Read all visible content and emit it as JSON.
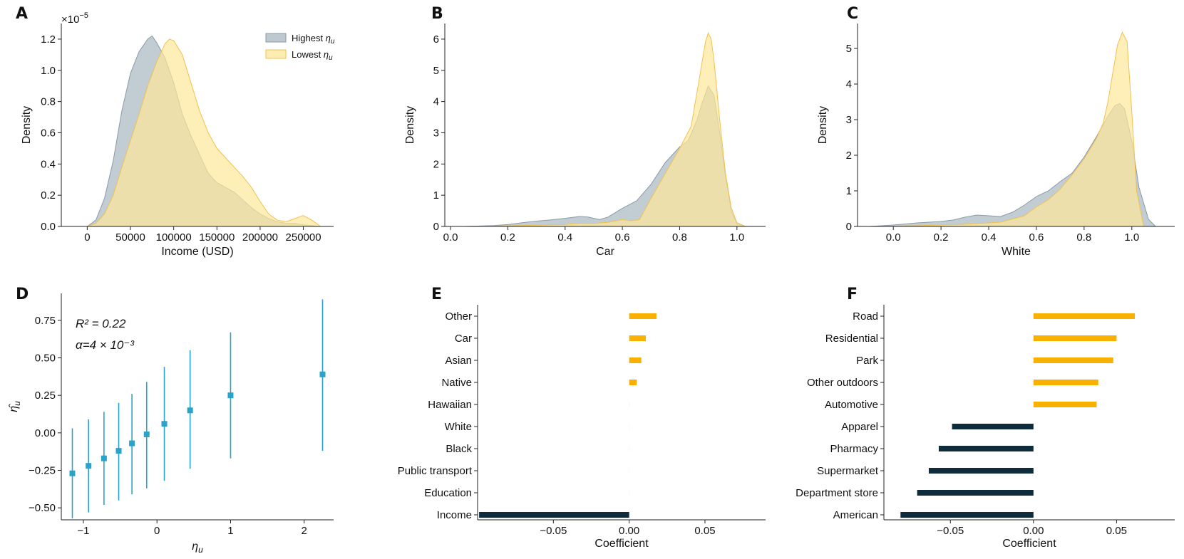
{
  "colors": {
    "highest": "#9aaab5",
    "highest_stroke": "#8a9aa6",
    "lowest": "#fde79a",
    "lowest_stroke": "#f2c14e",
    "positive_bar": "#f9b000",
    "negative_bar": "#0e2c3c",
    "errorbar": "#2aa3c8"
  },
  "chart_data": [
    {
      "panel": "A",
      "type": "area",
      "title": "",
      "xlabel": "Income (USD)",
      "ylabel": "Density",
      "scale_label": "×10",
      "scale_exp": "−5",
      "xlim": [
        -30000,
        285000
      ],
      "ylim": [
        0,
        1.3
      ],
      "xticks": [
        0,
        50000,
        100000,
        150000,
        200000,
        250000
      ],
      "xtick_labels": [
        "0",
        "50000",
        "100000",
        "150000",
        "200000",
        "250000"
      ],
      "yticks": [
        0,
        0.2,
        0.4,
        0.6,
        0.8,
        1.0,
        1.2
      ],
      "ytick_labels": [
        "0.0",
        "0.2",
        "0.4",
        "0.6",
        "0.8",
        "1.0",
        "1.2"
      ],
      "legend": {
        "position": "top-right",
        "entries": [
          {
            "base": "Highest ",
            "sym": "η",
            "sub": "u"
          },
          {
            "base": "Lowest ",
            "sym": "η",
            "sub": "u"
          }
        ]
      },
      "series": [
        {
          "name": "Highest η_u",
          "x": [
            0,
            10000,
            20000,
            30000,
            40000,
            50000,
            60000,
            70000,
            75000,
            80000,
            90000,
            100000,
            110000,
            120000,
            130000,
            140000,
            150000,
            160000,
            170000,
            180000,
            190000,
            200000,
            210000,
            220000,
            230000,
            240000,
            250000,
            260000,
            270000
          ],
          "y": [
            0.0,
            0.04,
            0.18,
            0.42,
            0.74,
            0.98,
            1.12,
            1.2,
            1.22,
            1.18,
            1.08,
            0.92,
            0.72,
            0.58,
            0.46,
            0.34,
            0.28,
            0.25,
            0.22,
            0.17,
            0.12,
            0.08,
            0.05,
            0.03,
            0.02,
            0.02,
            0.01,
            0.005,
            0.0
          ]
        },
        {
          "name": "Lowest η_u",
          "x": [
            0,
            10000,
            20000,
            30000,
            40000,
            50000,
            60000,
            70000,
            80000,
            90000,
            95000,
            100000,
            110000,
            120000,
            130000,
            140000,
            150000,
            160000,
            170000,
            180000,
            190000,
            200000,
            210000,
            220000,
            230000,
            240000,
            250000,
            260000,
            270000
          ],
          "y": [
            0.0,
            0.02,
            0.08,
            0.2,
            0.38,
            0.55,
            0.72,
            0.9,
            1.05,
            1.17,
            1.2,
            1.19,
            1.1,
            0.92,
            0.74,
            0.6,
            0.5,
            0.44,
            0.38,
            0.32,
            0.25,
            0.16,
            0.08,
            0.04,
            0.03,
            0.05,
            0.07,
            0.04,
            0.0
          ]
        }
      ]
    },
    {
      "panel": "B",
      "type": "area",
      "xlabel": "Car",
      "ylabel": "Density",
      "xlim": [
        -0.02,
        1.1
      ],
      "ylim": [
        0,
        6.5
      ],
      "xticks": [
        0.0,
        0.2,
        0.4,
        0.6,
        0.8,
        1.0
      ],
      "xtick_labels": [
        "0.0",
        "0.2",
        "0.4",
        "0.6",
        "0.8",
        "1.0"
      ],
      "yticks": [
        0,
        1,
        2,
        3,
        4,
        5,
        6
      ],
      "ytick_labels": [
        "0",
        "1",
        "2",
        "3",
        "4",
        "5",
        "6"
      ],
      "series": [
        {
          "name": "Highest η_u",
          "x": [
            0.05,
            0.15,
            0.2,
            0.25,
            0.3,
            0.35,
            0.4,
            0.45,
            0.48,
            0.52,
            0.55,
            0.6,
            0.65,
            0.7,
            0.75,
            0.8,
            0.83,
            0.86,
            0.88,
            0.9,
            0.92,
            0.94,
            0.96,
            0.98,
            1.0,
            1.03
          ],
          "y": [
            0.0,
            0.03,
            0.06,
            0.12,
            0.17,
            0.21,
            0.26,
            0.32,
            0.3,
            0.22,
            0.3,
            0.58,
            0.82,
            1.35,
            2.05,
            2.55,
            2.75,
            3.4,
            4.0,
            4.5,
            4.2,
            3.0,
            1.6,
            0.5,
            0.08,
            0.0
          ]
        },
        {
          "name": "Lowest η_u",
          "x": [
            0.05,
            0.2,
            0.3,
            0.4,
            0.45,
            0.5,
            0.55,
            0.6,
            0.63,
            0.66,
            0.7,
            0.75,
            0.8,
            0.84,
            0.87,
            0.89,
            0.9,
            0.91,
            0.92,
            0.94,
            0.96,
            0.98,
            1.0,
            1.03
          ],
          "y": [
            0.0,
            0.02,
            0.04,
            0.06,
            0.1,
            0.1,
            0.13,
            0.22,
            0.18,
            0.22,
            0.9,
            1.7,
            2.5,
            3.2,
            4.8,
            5.9,
            6.2,
            6.0,
            5.3,
            3.4,
            1.7,
            0.6,
            0.12,
            0.0
          ]
        }
      ]
    },
    {
      "panel": "C",
      "type": "area",
      "xlabel": "White",
      "ylabel": "Density",
      "xlim": [
        -0.15,
        1.18
      ],
      "ylim": [
        0,
        5.7
      ],
      "xticks": [
        0.0,
        0.2,
        0.4,
        0.6,
        0.8,
        1.0
      ],
      "xtick_labels": [
        "0.0",
        "0.2",
        "0.4",
        "0.6",
        "0.8",
        "1.0"
      ],
      "yticks": [
        0,
        1,
        2,
        3,
        4,
        5
      ],
      "ytick_labels": [
        "0",
        "1",
        "2",
        "3",
        "4",
        "5"
      ],
      "series": [
        {
          "name": "Highest η_u",
          "x": [
            -0.1,
            0.0,
            0.1,
            0.2,
            0.25,
            0.3,
            0.35,
            0.4,
            0.45,
            0.5,
            0.55,
            0.6,
            0.65,
            0.7,
            0.75,
            0.8,
            0.85,
            0.9,
            0.93,
            0.95,
            0.97,
            1.0,
            1.03,
            1.07,
            1.1
          ],
          "y": [
            0.0,
            0.04,
            0.1,
            0.14,
            0.18,
            0.26,
            0.32,
            0.3,
            0.28,
            0.4,
            0.6,
            0.84,
            1.0,
            1.26,
            1.5,
            1.95,
            2.5,
            3.1,
            3.4,
            3.45,
            3.3,
            2.4,
            1.1,
            0.2,
            0.0
          ]
        },
        {
          "name": "Lowest η_u",
          "x": [
            -0.1,
            0.1,
            0.3,
            0.45,
            0.55,
            0.6,
            0.65,
            0.7,
            0.75,
            0.8,
            0.85,
            0.88,
            0.9,
            0.92,
            0.94,
            0.96,
            0.98,
            1.0,
            1.02,
            1.05
          ],
          "y": [
            0.0,
            0.02,
            0.06,
            0.12,
            0.3,
            0.55,
            0.75,
            1.05,
            1.45,
            1.9,
            2.45,
            2.9,
            3.5,
            4.3,
            5.1,
            5.45,
            5.2,
            3.2,
            1.0,
            0.0
          ]
        }
      ]
    },
    {
      "panel": "D",
      "type": "scatter",
      "xlabel_sym": "η",
      "xlabel_sub": "u",
      "ylabel_sym": "η̂",
      "ylabel_sub": "u",
      "annotation_r2": "R² = 0.22",
      "annotation_alpha": "α=4 × 10⁻³",
      "xlim": [
        -1.3,
        2.4
      ],
      "ylim": [
        -0.58,
        0.93
      ],
      "xticks": [
        -1,
        0,
        1,
        2
      ],
      "xtick_labels": [
        "−1",
        "0",
        "1",
        "2"
      ],
      "yticks": [
        -0.5,
        -0.25,
        0.0,
        0.25,
        0.5,
        0.75
      ],
      "ytick_labels": [
        "−0.50",
        "−0.25",
        "0.00",
        "0.25",
        "0.50",
        "0.75"
      ],
      "points": [
        {
          "x": -1.15,
          "y": -0.27,
          "lo": -0.57,
          "hi": 0.03
        },
        {
          "x": -0.93,
          "y": -0.22,
          "lo": -0.53,
          "hi": 0.09
        },
        {
          "x": -0.72,
          "y": -0.17,
          "lo": -0.48,
          "hi": 0.14
        },
        {
          "x": -0.52,
          "y": -0.12,
          "lo": -0.45,
          "hi": 0.2
        },
        {
          "x": -0.34,
          "y": -0.07,
          "lo": -0.41,
          "hi": 0.26
        },
        {
          "x": -0.14,
          "y": -0.01,
          "lo": -0.37,
          "hi": 0.34
        },
        {
          "x": 0.1,
          "y": 0.06,
          "lo": -0.32,
          "hi": 0.44
        },
        {
          "x": 0.45,
          "y": 0.15,
          "lo": -0.24,
          "hi": 0.55
        },
        {
          "x": 1.0,
          "y": 0.25,
          "lo": -0.17,
          "hi": 0.67
        },
        {
          "x": 2.25,
          "y": 0.39,
          "lo": -0.12,
          "hi": 0.89
        }
      ]
    },
    {
      "panel": "E",
      "type": "bar",
      "orientation": "horizontal",
      "xlabel": "Coefficient",
      "xlim": [
        -0.1,
        0.09
      ],
      "xticks": [
        -0.05,
        0.0,
        0.05
      ],
      "xtick_labels": [
        "−0.05",
        "0.00",
        "0.05"
      ],
      "categories": [
        "Other",
        "Car",
        "Asian",
        "Native",
        "Hawaiian",
        "White",
        "Black",
        "Public transport",
        "Education",
        "Income"
      ],
      "values": [
        0.018,
        0.011,
        0.008,
        0.005,
        0.0,
        0.0,
        0.0,
        0.0,
        0.0,
        -0.099
      ]
    },
    {
      "panel": "F",
      "type": "bar",
      "orientation": "horizontal",
      "xlabel": "Coefficient",
      "xlim": [
        -0.09,
        0.085
      ],
      "xticks": [
        -0.05,
        0.0,
        0.05
      ],
      "xtick_labels": [
        "−0.05",
        "0.00",
        "0.05"
      ],
      "categories": [
        "Road",
        "Residential",
        "Park",
        "Other outdoors",
        "Automotive",
        "Apparel",
        "Pharmacy",
        "Supermarket",
        "Department store",
        "American"
      ],
      "values": [
        0.061,
        0.05,
        0.048,
        0.039,
        0.038,
        -0.049,
        -0.057,
        -0.063,
        -0.07,
        -0.08
      ]
    }
  ]
}
